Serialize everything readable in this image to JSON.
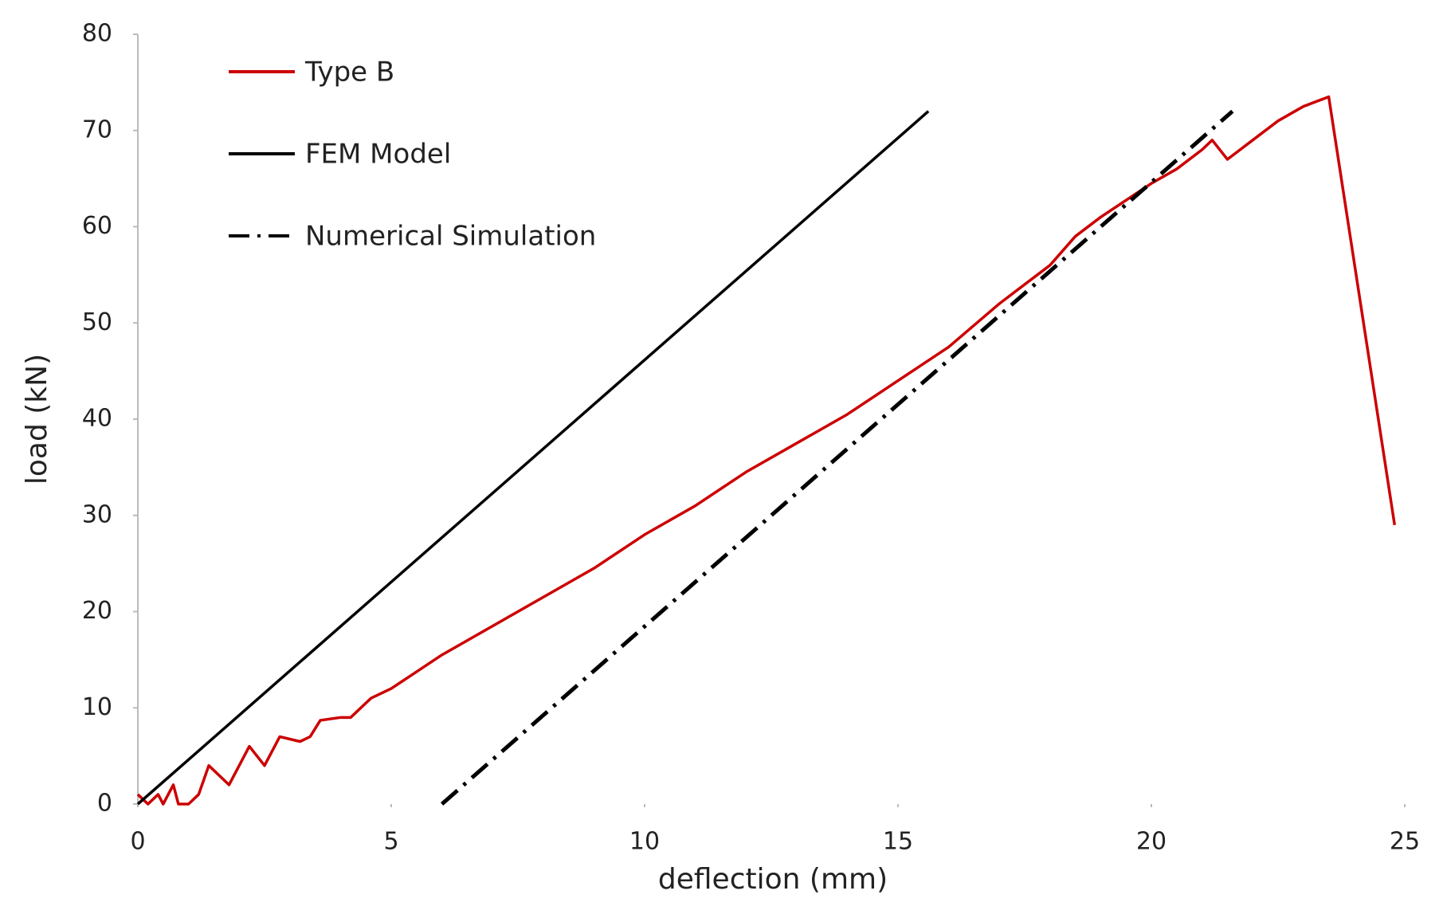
{
  "chart_data": {
    "type": "line",
    "xlabel": "deflection (mm)",
    "ylabel": "load (kN)",
    "xlim": [
      0,
      25
    ],
    "ylim": [
      0,
      80
    ],
    "xticks": [
      0,
      5,
      10,
      15,
      20,
      25
    ],
    "yticks": [
      0,
      10,
      20,
      30,
      40,
      50,
      60,
      70,
      80
    ],
    "series": [
      {
        "name": "Type B",
        "color": "#cc0000",
        "dash": "solid",
        "x": [
          0,
          0.2,
          0.4,
          0.5,
          0.7,
          0.8,
          1.0,
          1.2,
          1.4,
          1.8,
          2.2,
          2.5,
          2.8,
          3.2,
          3.4,
          3.6,
          4.0,
          4.2,
          4.5,
          4.6,
          5,
          6,
          7,
          8,
          9,
          10,
          11,
          12,
          13,
          14,
          15,
          16,
          17,
          18,
          18.5,
          19,
          20,
          20.5,
          21,
          21.2,
          21.5,
          22,
          22.5,
          23,
          23.5,
          24.8
        ],
        "values": [
          1,
          0,
          1,
          0,
          2,
          0,
          0,
          1,
          4,
          2,
          6,
          4,
          7,
          6.5,
          7,
          8.7,
          9,
          9,
          10.5,
          11,
          12,
          15.5,
          18.5,
          21.5,
          24.5,
          28,
          31,
          34.5,
          37.5,
          40.5,
          44,
          47.5,
          52,
          56,
          59,
          61,
          64.5,
          66,
          68,
          69,
          67,
          69,
          71,
          72.5,
          73.5,
          29
        ]
      },
      {
        "name": "FEM Model",
        "color": "#000000",
        "dash": "solid",
        "x": [
          0,
          15.6
        ],
        "values": [
          0,
          72
        ]
      },
      {
        "name": "Numerical Simulation",
        "color": "#000000",
        "dash": "dashdot",
        "x": [
          6,
          21.6
        ],
        "values": [
          0,
          72
        ]
      }
    ]
  }
}
